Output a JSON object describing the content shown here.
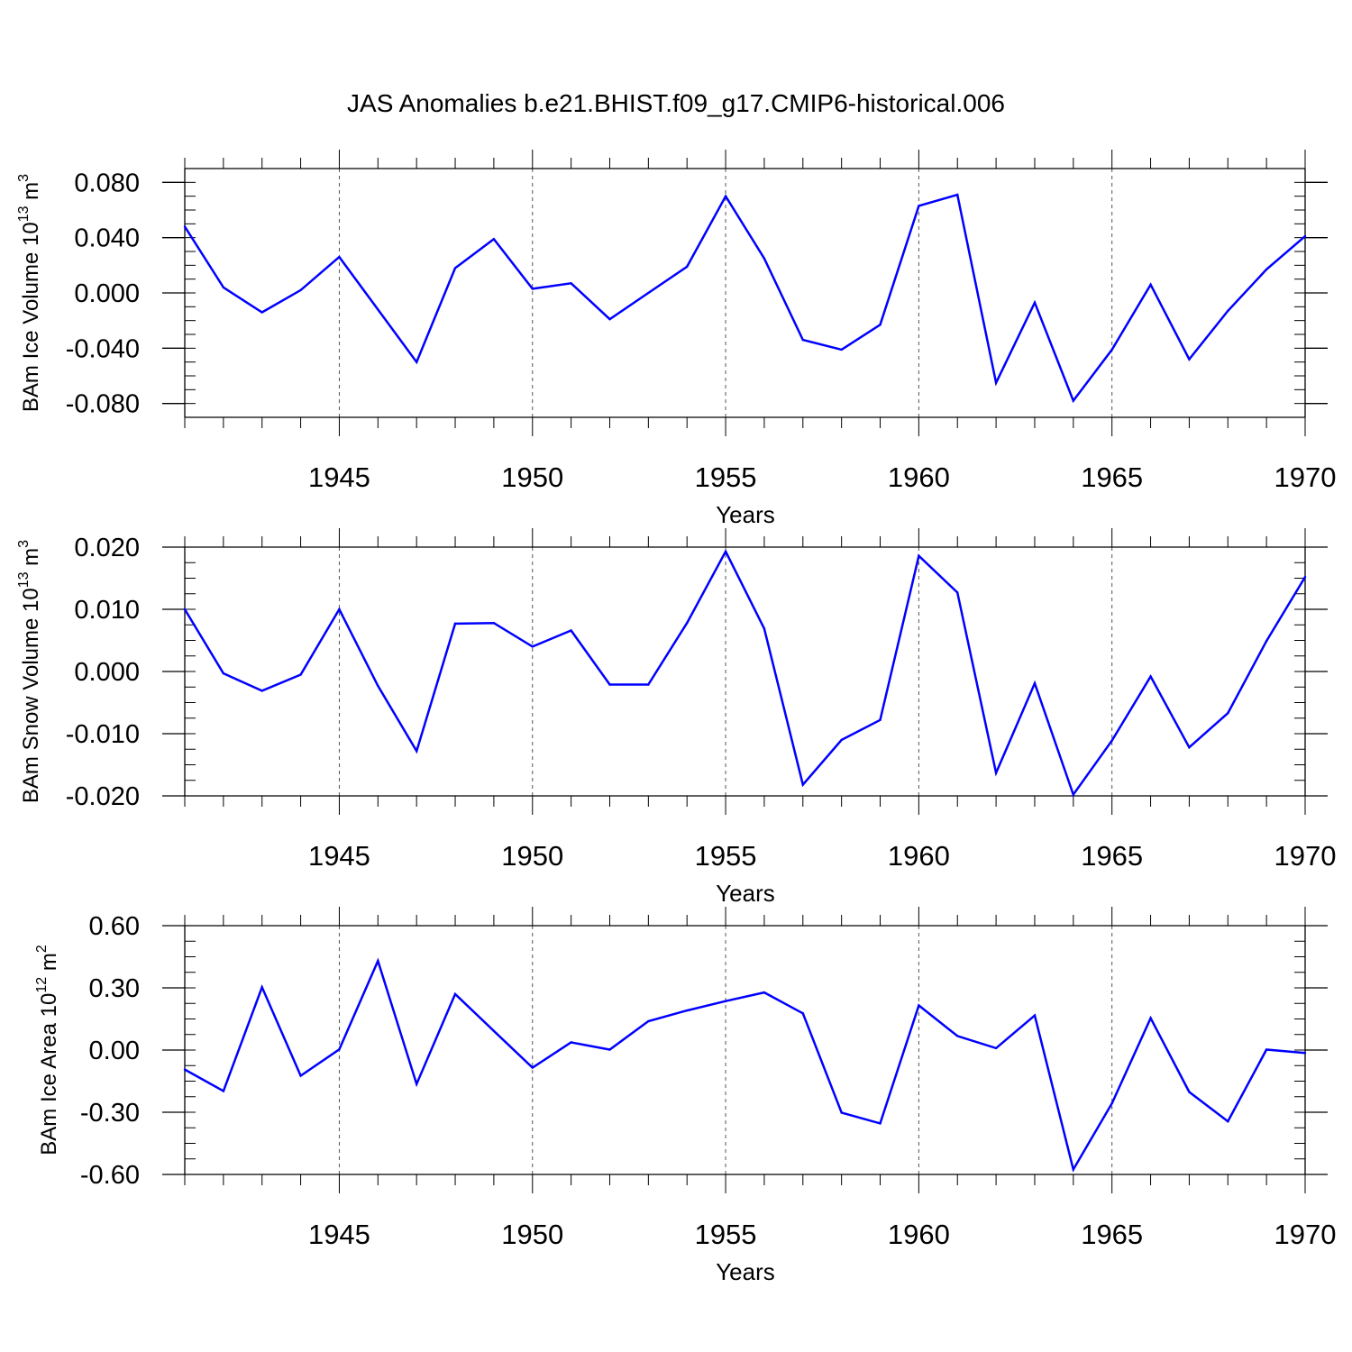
{
  "title": "JAS Anomalies b.e21.BHIST.f09_g17.CMIP6-historical.006",
  "colors": {
    "line": "#0000ff",
    "axis": "#000000",
    "grid": "#555555"
  },
  "chart_data": [
    {
      "type": "line",
      "ylabel": {
        "main": "BAm Ice Volume 10",
        "sup": "13",
        "unit": " m",
        "unit_sup": "3"
      },
      "xlabel": "Years",
      "xlim": [
        1941,
        1970
      ],
      "ylim": [
        -0.09,
        0.09
      ],
      "yticks": [
        0.08,
        0.04,
        0.0,
        -0.04,
        -0.08
      ],
      "ytick_labels": [
        "0.080",
        "0.040",
        "0.000",
        "-0.040",
        "-0.080"
      ],
      "xticks": [
        1945,
        1950,
        1955,
        1960,
        1965,
        1970
      ],
      "xtick_labels": [
        "1945",
        "1950",
        "1955",
        "1960",
        "1965",
        "1970"
      ],
      "grid": "x-dashed",
      "x": [
        1941,
        1942,
        1943,
        1944,
        1945,
        1946,
        1947,
        1948,
        1949,
        1950,
        1951,
        1952,
        1953,
        1954,
        1955,
        1956,
        1957,
        1958,
        1959,
        1960,
        1961,
        1962,
        1963,
        1964,
        1965,
        1966,
        1967,
        1968,
        1969,
        1970
      ],
      "values": [
        0.048,
        0.004,
        -0.014,
        0.002,
        0.026,
        -0.012,
        -0.05,
        0.018,
        0.039,
        0.003,
        0.007,
        -0.019,
        0.0,
        0.019,
        0.07,
        0.025,
        -0.034,
        -0.041,
        -0.023,
        0.063,
        0.071,
        -0.065,
        -0.007,
        -0.078,
        -0.041,
        0.006,
        -0.048,
        -0.013,
        0.017,
        0.041
      ]
    },
    {
      "type": "line",
      "ylabel": {
        "main": "BAm Snow Volume 10",
        "sup": "13",
        "unit": " m",
        "unit_sup": "3"
      },
      "xlabel": "Years",
      "xlim": [
        1941,
        1970
      ],
      "ylim": [
        -0.02,
        0.02
      ],
      "yticks": [
        0.02,
        0.01,
        0.0,
        -0.01,
        -0.02
      ],
      "ytick_labels": [
        "0.020",
        "0.010",
        "0.000",
        "-0.010",
        "-0.020"
      ],
      "xticks": [
        1945,
        1950,
        1955,
        1960,
        1965,
        1970
      ],
      "xtick_labels": [
        "1945",
        "1950",
        "1955",
        "1960",
        "1965",
        "1970"
      ],
      "grid": "x-dashed",
      "x": [
        1941,
        1942,
        1943,
        1944,
        1945,
        1946,
        1947,
        1948,
        1949,
        1950,
        1951,
        1952,
        1953,
        1954,
        1955,
        1956,
        1957,
        1958,
        1959,
        1960,
        1961,
        1962,
        1963,
        1964,
        1965,
        1966,
        1967,
        1968,
        1969,
        1970
      ],
      "values": [
        0.01,
        -0.0003,
        -0.0031,
        -0.0005,
        0.01,
        -0.0023,
        -0.0128,
        0.0077,
        0.0078,
        0.004,
        0.0066,
        -0.0021,
        -0.0021,
        0.0078,
        0.0193,
        0.0069,
        -0.0182,
        -0.011,
        -0.0078,
        0.0186,
        0.0127,
        -0.0163,
        -0.0019,
        -0.0198,
        -0.0111,
        -0.0008,
        -0.0122,
        -0.0067,
        0.0049,
        0.0152
      ]
    },
    {
      "type": "line",
      "ylabel": {
        "main": "BAm Ice Area 10",
        "sup": "12",
        "unit": " m",
        "unit_sup": "2"
      },
      "xlabel": "Years",
      "xlim": [
        1941,
        1970
      ],
      "ylim": [
        -0.6,
        0.6
      ],
      "yticks": [
        0.6,
        0.3,
        0.0,
        -0.3,
        -0.6
      ],
      "ytick_labels": [
        "0.60",
        "0.30",
        "0.00",
        "-0.30",
        "-0.60"
      ],
      "xticks": [
        1945,
        1950,
        1955,
        1960,
        1965,
        1970
      ],
      "xtick_labels": [
        "1945",
        "1950",
        "1955",
        "1960",
        "1965",
        "1970"
      ],
      "grid": "x-dashed",
      "x": [
        1941,
        1942,
        1943,
        1944,
        1945,
        1946,
        1947,
        1948,
        1949,
        1950,
        1951,
        1952,
        1953,
        1954,
        1955,
        1956,
        1957,
        1958,
        1959,
        1960,
        1961,
        1962,
        1963,
        1964,
        1965,
        1966,
        1967,
        1968,
        1969,
        1970
      ],
      "values": [
        -0.094,
        -0.198,
        0.303,
        -0.124,
        0.003,
        0.43,
        -0.164,
        0.27,
        0.092,
        -0.085,
        0.037,
        0.002,
        0.139,
        0.191,
        0.236,
        0.278,
        0.177,
        -0.302,
        -0.354,
        0.215,
        0.068,
        0.009,
        0.167,
        -0.576,
        -0.257,
        0.154,
        -0.202,
        -0.344,
        0.002,
        -0.014
      ]
    }
  ]
}
